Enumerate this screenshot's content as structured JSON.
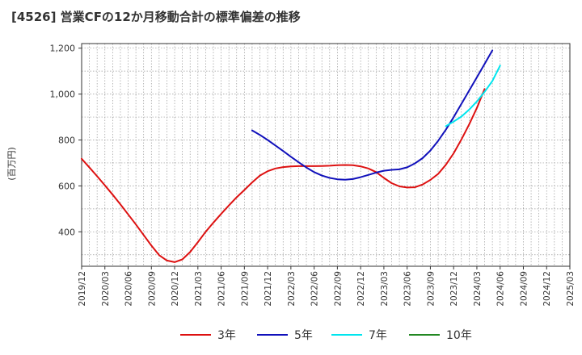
{
  "title": "[4526]  営業CFの12か月移動合計の標準偏差の推移",
  "chart_data": {
    "type": "line",
    "ylabel": "(百万円)",
    "xlabel": "",
    "x_ticks": [
      "2019/12",
      "2020/03",
      "2020/06",
      "2020/09",
      "2020/12",
      "2021/03",
      "2021/06",
      "2021/09",
      "2021/12",
      "2022/03",
      "2022/06",
      "2022/09",
      "2022/12",
      "2023/03",
      "2023/06",
      "2023/09",
      "2023/12",
      "2024/03",
      "2024/06",
      "2024/09",
      "2024/12",
      "2025/03"
    ],
    "y_ticks": [
      "400",
      "600",
      "800",
      "1,000",
      "1,200"
    ],
    "ylim": [
      250,
      1220
    ],
    "grid": true,
    "legend_position": "bottom",
    "series": [
      {
        "name": "3年",
        "color": "#dd1111",
        "points": [
          [
            "2019/12",
            718
          ],
          [
            "2020/01",
            680
          ],
          [
            "2020/02",
            642
          ],
          [
            "2020/03",
            602
          ],
          [
            "2020/04",
            562
          ],
          [
            "2020/05",
            520
          ],
          [
            "2020/06",
            476
          ],
          [
            "2020/07",
            432
          ],
          [
            "2020/08",
            386
          ],
          [
            "2020/09",
            340
          ],
          [
            "2020/10",
            298
          ],
          [
            "2020/11",
            275
          ],
          [
            "2020/12",
            268
          ],
          [
            "2021/01",
            280
          ],
          [
            "2021/02",
            312
          ],
          [
            "2021/03",
            355
          ],
          [
            "2021/04",
            400
          ],
          [
            "2021/05",
            440
          ],
          [
            "2021/06",
            478
          ],
          [
            "2021/07",
            515
          ],
          [
            "2021/08",
            550
          ],
          [
            "2021/09",
            582
          ],
          [
            "2021/10",
            615
          ],
          [
            "2021/11",
            645
          ],
          [
            "2021/12",
            664
          ],
          [
            "2022/01",
            676
          ],
          [
            "2022/02",
            682
          ],
          [
            "2022/03",
            685
          ],
          [
            "2022/04",
            686
          ],
          [
            "2022/05",
            686
          ],
          [
            "2022/06",
            686
          ],
          [
            "2022/07",
            687
          ],
          [
            "2022/08",
            688
          ],
          [
            "2022/09",
            690
          ],
          [
            "2022/10",
            691
          ],
          [
            "2022/11",
            690
          ],
          [
            "2022/12",
            685
          ],
          [
            "2023/01",
            676
          ],
          [
            "2023/02",
            660
          ],
          [
            "2023/03",
            635
          ],
          [
            "2023/04",
            612
          ],
          [
            "2023/05",
            598
          ],
          [
            "2023/06",
            593
          ],
          [
            "2023/07",
            594
          ],
          [
            "2023/08",
            606
          ],
          [
            "2023/09",
            626
          ],
          [
            "2023/10",
            652
          ],
          [
            "2023/11",
            692
          ],
          [
            "2023/12",
            742
          ],
          [
            "2024/01",
            802
          ],
          [
            "2024/02",
            868
          ],
          [
            "2024/03",
            940
          ],
          [
            "2024/04",
            1022
          ]
        ]
      },
      {
        "name": "5年",
        "color": "#1111bb",
        "points": [
          [
            "2021/10",
            842
          ],
          [
            "2021/11",
            822
          ],
          [
            "2021/12",
            800
          ],
          [
            "2022/01",
            776
          ],
          [
            "2022/02",
            752
          ],
          [
            "2022/03",
            727
          ],
          [
            "2022/04",
            703
          ],
          [
            "2022/05",
            680
          ],
          [
            "2022/06",
            660
          ],
          [
            "2022/07",
            645
          ],
          [
            "2022/08",
            635
          ],
          [
            "2022/09",
            629
          ],
          [
            "2022/10",
            627
          ],
          [
            "2022/11",
            630
          ],
          [
            "2022/12",
            638
          ],
          [
            "2023/01",
            648
          ],
          [
            "2023/02",
            658
          ],
          [
            "2023/03",
            666
          ],
          [
            "2023/04",
            670
          ],
          [
            "2023/05",
            672
          ],
          [
            "2023/06",
            681
          ],
          [
            "2023/07",
            698
          ],
          [
            "2023/08",
            721
          ],
          [
            "2023/09",
            754
          ],
          [
            "2023/10",
            796
          ],
          [
            "2023/11",
            845
          ],
          [
            "2023/12",
            899
          ],
          [
            "2024/01",
            957
          ],
          [
            "2024/02",
            1015
          ],
          [
            "2024/03",
            1073
          ],
          [
            "2024/04",
            1131
          ],
          [
            "2024/05",
            1190
          ]
        ]
      },
      {
        "name": "7年",
        "color": "#00e5ee",
        "points": [
          [
            "2023/11",
            860
          ],
          [
            "2023/12",
            880
          ],
          [
            "2024/01",
            902
          ],
          [
            "2024/02",
            932
          ],
          [
            "2024/03",
            968
          ],
          [
            "2024/04",
            1010
          ],
          [
            "2024/05",
            1057
          ],
          [
            "2024/06",
            1124
          ]
        ]
      },
      {
        "name": "10年",
        "color": "#228822",
        "points": []
      }
    ]
  }
}
